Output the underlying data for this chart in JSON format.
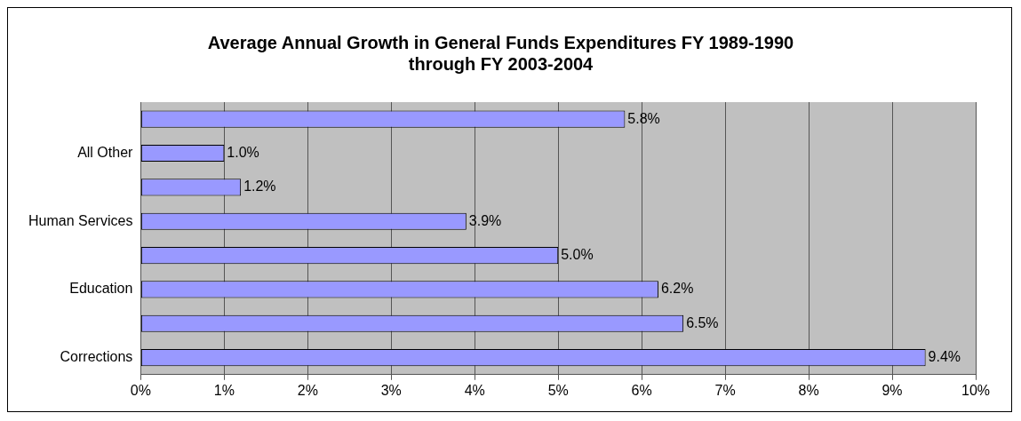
{
  "chart_data": {
    "type": "bar",
    "orientation": "horizontal",
    "title": "Average Annual Growth in General Funds Expenditures FY 1989-1990\nthrough FY 2003-2004",
    "categories": [
      null,
      "All Other",
      null,
      "Human Services",
      null,
      "Education",
      null,
      "Corrections"
    ],
    "values": [
      5.8,
      1.0,
      1.2,
      3.9,
      5.0,
      6.2,
      6.5,
      9.4
    ],
    "value_labels": [
      "5.8%",
      "1.0%",
      "1.2%",
      "3.9%",
      "5.0%",
      "6.2%",
      "6.5%",
      "9.4%"
    ],
    "color": "#9999ff",
    "xlim": [
      0,
      10
    ],
    "xticks": [
      {
        "value": 0,
        "label": "0%"
      },
      {
        "value": 1,
        "label": "1%"
      },
      {
        "value": 2,
        "label": "2%"
      },
      {
        "value": 3,
        "label": "3%"
      },
      {
        "value": 4,
        "label": "4%"
      },
      {
        "value": 5,
        "label": "5%"
      },
      {
        "value": 6,
        "label": "6%"
      },
      {
        "value": 7,
        "label": "7%"
      },
      {
        "value": 8,
        "label": "8%"
      },
      {
        "value": 9,
        "label": "9%"
      },
      {
        "value": 10,
        "label": "10%"
      }
    ],
    "grid": "x",
    "legend": false
  }
}
